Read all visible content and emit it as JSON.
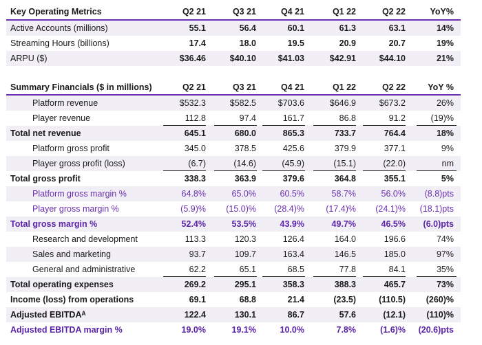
{
  "kom": {
    "header": [
      "Key Operating Metrics",
      "Q2 21",
      "Q3 21",
      "Q4 21",
      "Q1 22",
      "Q2 22",
      "YoY%"
    ],
    "rows": [
      [
        "Active Accounts (millions)",
        "55.1",
        "56.4",
        "60.1",
        "61.3",
        "63.1",
        "14%"
      ],
      [
        "Streaming Hours (billions)",
        "17.4",
        "18.0",
        "19.5",
        "20.9",
        "20.7",
        "19%"
      ],
      [
        "ARPU ($)",
        "$36.46",
        "$40.10",
        "$41.03",
        "$42.91",
        "$44.10",
        "21%"
      ]
    ]
  },
  "sf": {
    "header": [
      "Summary Financials ($ in millions)",
      "Q2 21",
      "Q3 21",
      "Q4 21",
      "Q1 22",
      "Q2 22",
      "YoY %"
    ],
    "rows": [
      [
        "Platform revenue",
        "$532.3",
        "$582.5",
        "$703.6",
        "$646.9",
        "$673.2",
        "26%"
      ],
      [
        "Player revenue",
        "112.8",
        "97.4",
        "161.7",
        "86.8",
        "91.2",
        "(19)%"
      ],
      [
        "Total net revenue",
        "645.1",
        "680.0",
        "865.3",
        "733.7",
        "764.4",
        "18%"
      ],
      [
        "Platform gross profit",
        "345.0",
        "378.5",
        "425.6",
        "379.9",
        "377.1",
        "9%"
      ],
      [
        "Player gross profit (loss)",
        "(6.7)",
        "(14.6)",
        "(45.9)",
        "(15.1)",
        "(22.0)",
        "nm"
      ],
      [
        "Total gross profit",
        "338.3",
        "363.9",
        "379.6",
        "364.8",
        "355.1",
        "5%"
      ],
      [
        "Platform gross margin %",
        "64.8%",
        "65.0%",
        "60.5%",
        "58.7%",
        "56.0%",
        "(8.8)pts"
      ],
      [
        "Player gross margin %",
        "(5.9)%",
        "(15.0)%",
        "(28.4)%",
        "(17.4)%",
        "(24.1)%",
        "(18.1)pts"
      ],
      [
        "Total gross margin %",
        "52.4%",
        "53.5%",
        "43.9%",
        "49.7%",
        "46.5%",
        "(6.0)pts"
      ],
      [
        "Research and development",
        "113.3",
        "120.3",
        "126.4",
        "164.0",
        "196.6",
        "74%"
      ],
      [
        "Sales and marketing",
        "93.7",
        "109.7",
        "163.4",
        "146.5",
        "185.0",
        "97%"
      ],
      [
        "General and administrative",
        "62.2",
        "65.1",
        "68.5",
        "77.8",
        "84.1",
        "35%"
      ],
      [
        "Total operating expenses",
        "269.2",
        "295.1",
        "358.3",
        "388.3",
        "465.7",
        "73%"
      ],
      [
        "Income (loss) from operations",
        "69.1",
        "68.8",
        "21.4",
        "(23.5)",
        "(110.5)",
        "(260)%"
      ],
      [
        "Adjusted EBITDAᴬ",
        "122.4",
        "130.1",
        "86.7",
        "57.6",
        "(12.1)",
        "(110)%"
      ],
      [
        "Adjusted EBITDA margin %",
        "19.0%",
        "19.1%",
        "10.0%",
        "7.8%",
        "(1.6)%",
        "(20.6)pts"
      ]
    ]
  }
}
